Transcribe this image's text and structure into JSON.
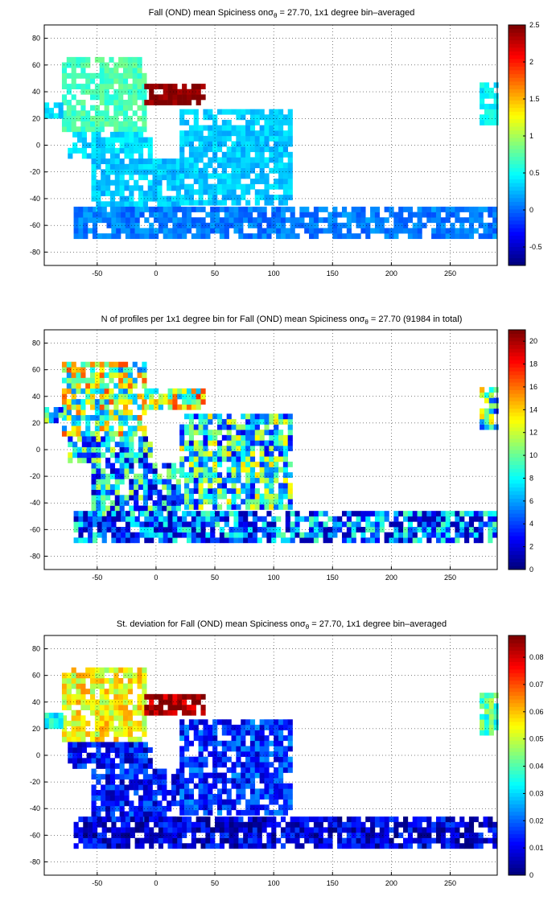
{
  "panels": [
    {
      "title_main": "Fall (OND) mean Spiciness on",
      "title_sym": "σ",
      "title_sub": "θ",
      "title_rest": " = 27.70, 1x1 degree bin–averaged",
      "colorbar": {
        "min": -0.75,
        "max": 2.5,
        "ticks": [
          "-0.5",
          "0",
          "0.5",
          "1",
          "1.5",
          "2",
          "2.5"
        ],
        "tick_values": [
          -0.5,
          0,
          0.5,
          1,
          1.5,
          2,
          2.5
        ]
      },
      "field": "spiciness"
    },
    {
      "title_main": "N of profiles per 1x1 degree bin for Fall (OND) mean Spiciness on",
      "title_sym": "σ",
      "title_sub": "θ",
      "title_rest": " = 27.70 (91984 in total)",
      "colorbar": {
        "min": 0,
        "max": 21,
        "ticks": [
          "0",
          "2",
          "4",
          "6",
          "8",
          "10",
          "12",
          "14",
          "16",
          "18",
          "20"
        ],
        "tick_values": [
          0,
          2,
          4,
          6,
          8,
          10,
          12,
          14,
          16,
          18,
          20
        ]
      },
      "field": "count"
    },
    {
      "title_main": "St. deviation for Fall (OND) mean Spiciness on",
      "title_sym": "σ",
      "title_sub": "θ",
      "title_rest": " = 27.70, 1x1 degree bin–averaged",
      "colorbar": {
        "min": 0,
        "max": 0.088,
        "ticks": [
          "0",
          "0.01",
          "0.02",
          "0.03",
          "0.04",
          "0.05",
          "0.06",
          "0.07",
          "0.08"
        ],
        "tick_values": [
          0,
          0.01,
          0.02,
          0.03,
          0.04,
          0.05,
          0.06,
          0.07,
          0.08
        ]
      },
      "field": "stdev"
    }
  ],
  "axes": {
    "x_ticks": [
      "-50",
      "0",
      "50",
      "100",
      "150",
      "200",
      "250"
    ],
    "x_tick_values": [
      -50,
      0,
      50,
      100,
      150,
      200,
      250
    ],
    "y_ticks": [
      "80",
      "60",
      "40",
      "20",
      "0",
      "-20",
      "-40",
      "-60",
      "-80"
    ],
    "y_tick_values": [
      80,
      60,
      40,
      20,
      0,
      -20,
      -40,
      -60,
      -80
    ],
    "xlim": [
      -95,
      290
    ],
    "ylim": [
      -90,
      90
    ],
    "grid": "dotted"
  },
  "chart_data": [
    {
      "type": "heatmap",
      "title": "Fall (OND) mean Spiciness on σθ = 27.70, 1x1 degree bin–averaged",
      "xlim": [
        -95,
        290
      ],
      "ylim": [
        -90,
        90
      ],
      "clim": [
        -0.75,
        2.5
      ],
      "colormap": "jet",
      "grid": true,
      "description_values": {
        "Mediterranean": 2.5,
        "North Atlantic eastern boundary": 1.6,
        "North Atlantic": 0.6,
        "South Atlantic / Indian": 0.35,
        "Southern Ocean": 0.1
      }
    },
    {
      "type": "heatmap",
      "title": "N of profiles per 1x1 degree bin for Fall (OND) mean Spiciness on σθ = 27.70 (91984 in total)",
      "xlim": [
        -95,
        290
      ],
      "ylim": [
        -90,
        90
      ],
      "clim": [
        0,
        21
      ],
      "colormap": "jet",
      "total": 91984,
      "grid": true
    },
    {
      "type": "heatmap",
      "title": "St. deviation for Fall (OND) mean Spiciness on σθ = 27.70, 1x1 degree bin–averaged",
      "xlim": [
        -95,
        290
      ],
      "ylim": [
        -90,
        90
      ],
      "clim": [
        0,
        0.088
      ],
      "colormap": "jet",
      "grid": true
    }
  ]
}
